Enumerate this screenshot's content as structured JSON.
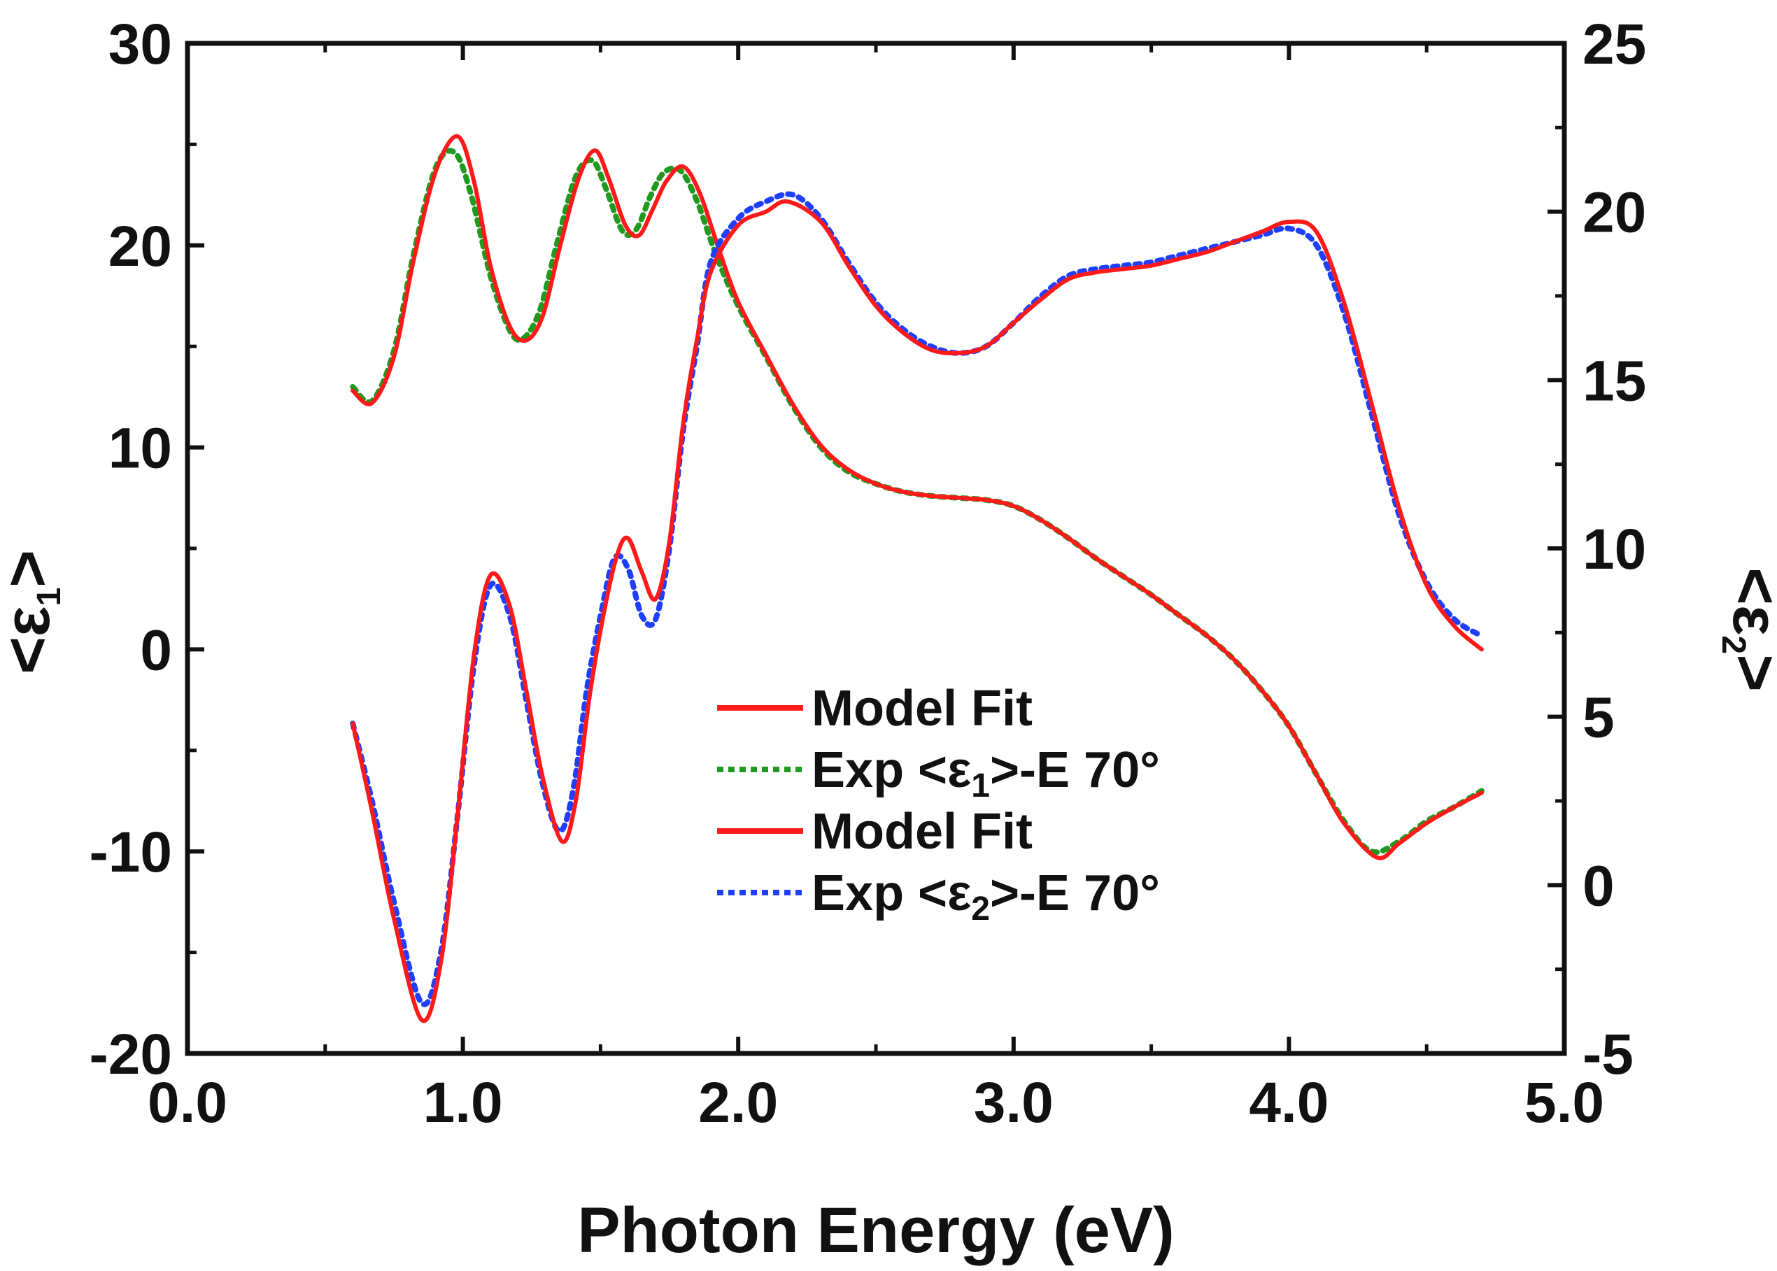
{
  "chart_data": {
    "type": "line",
    "xlabel": "Photon Energy (eV)",
    "ylabel_left": {
      "open": "<",
      "symbol": "ε",
      "sub": "1",
      "close": ">"
    },
    "ylabel_right": {
      "open": "<",
      "symbol": "ε",
      "sub": "2",
      "close": ">"
    },
    "xlim": [
      0.0,
      5.0
    ],
    "ylim_left": [
      -20,
      30
    ],
    "ylim_right": [
      -5,
      25
    ],
    "x_ticks": [
      "0.0",
      "1.0",
      "2.0",
      "3.0",
      "4.0",
      "5.0"
    ],
    "x_tick_values": [
      0,
      1,
      2,
      3,
      4,
      5
    ],
    "y_left_ticks": [
      "-20",
      "-10",
      "0",
      "10",
      "20",
      "30"
    ],
    "y_left_tick_values": [
      -20,
      -10,
      0,
      10,
      20,
      30
    ],
    "y_right_ticks": [
      "-5",
      "0",
      "5",
      "10",
      "15",
      "20",
      "25"
    ],
    "y_right_tick_values": [
      -5,
      0,
      5,
      10,
      15,
      20,
      25
    ],
    "legend": [
      {
        "label": "Model Fit",
        "color": "#ff1a1a",
        "style": "solid"
      },
      {
        "label": "Exp <ε₁>-E 70°",
        "prefix": "Exp <ε",
        "sub": "1",
        "suffix": ">-E 70°",
        "color": "#1f9a1f",
        "style": "dotted"
      },
      {
        "label": "Model Fit",
        "color": "#ff1a1a",
        "style": "solid"
      },
      {
        "label": "Exp <ε₂>-E 70°",
        "prefix": "Exp <ε",
        "sub": "2",
        "suffix": ">-E 70°",
        "color": "#1f3fff",
        "style": "dotted"
      }
    ],
    "series": [
      {
        "name": "Exp <ε1>-E 70°",
        "axis": "left",
        "color": "#1f9a1f",
        "style": "dotted",
        "x": [
          0.6,
          0.67,
          0.75,
          0.82,
          0.9,
          0.97,
          1.03,
          1.1,
          1.17,
          1.22,
          1.28,
          1.34,
          1.41,
          1.47,
          1.52,
          1.58,
          1.63,
          1.68,
          1.73,
          1.79,
          1.85,
          1.92,
          2.0,
          2.1,
          2.2,
          2.3,
          2.4,
          2.5,
          2.6,
          2.7,
          2.8,
          2.9,
          3.0,
          3.1,
          3.2,
          3.3,
          3.4,
          3.5,
          3.6,
          3.7,
          3.8,
          3.9,
          4.0,
          4.1,
          4.2,
          4.3,
          4.4,
          4.5,
          4.6,
          4.7
        ],
        "y": [
          13,
          12.3,
          14.8,
          19.5,
          23.8,
          24.6,
          22.5,
          18.5,
          15.8,
          15.4,
          16.8,
          20.0,
          23.4,
          24.2,
          22.8,
          20.7,
          20.8,
          22.4,
          23.6,
          23.7,
          22.2,
          19.5,
          17.0,
          14.5,
          12.0,
          10.0,
          8.8,
          8.2,
          7.8,
          7.6,
          7.5,
          7.4,
          7.1,
          6.4,
          5.5,
          4.5,
          3.6,
          2.7,
          1.7,
          0.7,
          -0.5,
          -2.0,
          -3.8,
          -6.2,
          -8.5,
          -10.0,
          -9.5,
          -8.5,
          -7.8,
          -7.0
        ]
      },
      {
        "name": "Model Fit (ε1)",
        "axis": "left",
        "color": "#ff1a1a",
        "style": "solid",
        "x": [
          0.6,
          0.67,
          0.75,
          0.82,
          0.9,
          0.98,
          1.04,
          1.1,
          1.17,
          1.23,
          1.29,
          1.35,
          1.42,
          1.48,
          1.53,
          1.59,
          1.64,
          1.69,
          1.74,
          1.8,
          1.86,
          1.93,
          2.0,
          2.1,
          2.2,
          2.3,
          2.4,
          2.5,
          2.6,
          2.7,
          2.8,
          2.9,
          3.0,
          3.1,
          3.2,
          3.3,
          3.4,
          3.5,
          3.6,
          3.7,
          3.8,
          3.9,
          4.0,
          4.1,
          4.2,
          4.32,
          4.4,
          4.5,
          4.6,
          4.7
        ],
        "y": [
          12.8,
          12.2,
          14.5,
          19.2,
          23.6,
          25.4,
          23.2,
          19.0,
          16.0,
          15.3,
          16.5,
          19.8,
          23.3,
          24.7,
          23.3,
          21.0,
          20.5,
          21.8,
          23.2,
          23.9,
          22.6,
          19.8,
          17.2,
          14.6,
          12.1,
          10.1,
          8.9,
          8.2,
          7.8,
          7.6,
          7.5,
          7.4,
          7.1,
          6.4,
          5.5,
          4.5,
          3.6,
          2.7,
          1.7,
          0.7,
          -0.5,
          -2.0,
          -3.8,
          -6.2,
          -8.6,
          -10.3,
          -9.6,
          -8.6,
          -7.8,
          -7.1
        ]
      },
      {
        "name": "Exp <ε2>-E 70°",
        "axis": "right",
        "color": "#1f3fff",
        "style": "dotted",
        "x": [
          0.6,
          0.67,
          0.75,
          0.85,
          0.92,
          0.98,
          1.04,
          1.1,
          1.17,
          1.23,
          1.29,
          1.35,
          1.4,
          1.45,
          1.5,
          1.55,
          1.6,
          1.65,
          1.7,
          1.75,
          1.8,
          1.85,
          1.9,
          2.0,
          2.1,
          2.2,
          2.3,
          2.4,
          2.5,
          2.6,
          2.7,
          2.8,
          2.9,
          3.0,
          3.1,
          3.2,
          3.3,
          3.4,
          3.5,
          3.6,
          3.7,
          3.8,
          3.9,
          4.0,
          4.1,
          4.2,
          4.3,
          4.4,
          4.5,
          4.6,
          4.7
        ],
        "y": [
          4.8,
          2.5,
          -0.5,
          -3.5,
          -2.0,
          2.0,
          6.5,
          8.9,
          8.0,
          5.5,
          3.0,
          1.6,
          2.8,
          5.8,
          8.0,
          9.7,
          9.4,
          8.0,
          7.9,
          10.0,
          13.5,
          16.0,
          18.5,
          19.8,
          20.3,
          20.5,
          19.8,
          18.5,
          17.3,
          16.5,
          16.0,
          15.8,
          16.0,
          16.7,
          17.5,
          18.1,
          18.3,
          18.4,
          18.5,
          18.7,
          18.9,
          19.1,
          19.3,
          19.5,
          19.0,
          17.0,
          14.0,
          11.0,
          9.0,
          7.9,
          7.4
        ]
      },
      {
        "name": "Model Fit (ε2)",
        "axis": "right",
        "color": "#ff1a1a",
        "style": "solid",
        "x": [
          0.6,
          0.67,
          0.75,
          0.85,
          0.92,
          0.98,
          1.04,
          1.1,
          1.17,
          1.23,
          1.29,
          1.36,
          1.41,
          1.46,
          1.51,
          1.56,
          1.6,
          1.65,
          1.7,
          1.75,
          1.8,
          1.85,
          1.9,
          2.0,
          2.1,
          2.18,
          2.3,
          2.4,
          2.5,
          2.6,
          2.7,
          2.8,
          2.9,
          3.0,
          3.1,
          3.2,
          3.3,
          3.4,
          3.5,
          3.6,
          3.7,
          3.8,
          3.9,
          4.0,
          4.1,
          4.2,
          4.3,
          4.4,
          4.5,
          4.6,
          4.7
        ],
        "y": [
          4.8,
          2.2,
          -1.0,
          -4.0,
          -2.3,
          2.0,
          6.8,
          9.2,
          8.3,
          5.8,
          3.2,
          1.3,
          2.5,
          5.6,
          8.0,
          9.8,
          10.3,
          9.3,
          8.5,
          10.2,
          13.7,
          16.2,
          18.2,
          19.6,
          20.0,
          20.3,
          19.7,
          18.4,
          17.2,
          16.4,
          15.9,
          15.8,
          16.0,
          16.7,
          17.4,
          18.0,
          18.2,
          18.3,
          18.4,
          18.6,
          18.8,
          19.1,
          19.4,
          19.7,
          19.4,
          17.3,
          14.3,
          11.2,
          8.9,
          7.7,
          7.0
        ]
      }
    ]
  }
}
